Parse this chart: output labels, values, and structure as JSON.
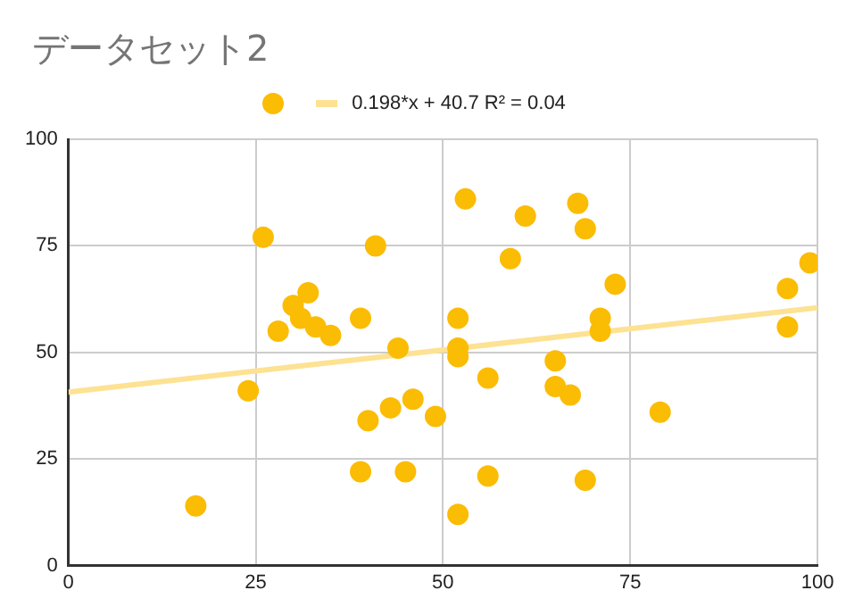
{
  "chart_data": {
    "type": "scatter",
    "title": "データセット2",
    "xlim": [
      0,
      100
    ],
    "ylim": [
      0,
      100
    ],
    "xticks": [
      0,
      25,
      50,
      75,
      100
    ],
    "yticks": [
      0,
      25,
      50,
      75,
      100
    ],
    "grid": true,
    "legend": "top",
    "series": [
      {
        "type": "scatter",
        "color": "#fbbc04",
        "marker": "circle",
        "x": [
          17,
          24,
          26,
          28,
          30,
          31,
          32,
          33,
          35,
          39,
          39,
          40,
          41,
          43,
          44,
          45,
          46,
          49,
          52,
          52,
          52,
          52,
          53,
          56,
          56,
          59,
          61,
          65,
          65,
          67,
          68,
          69,
          69,
          71,
          71,
          73,
          79,
          96,
          96,
          99
        ],
        "values": [
          14,
          41,
          77,
          55,
          61,
          58,
          64,
          56,
          54,
          58,
          22,
          34,
          75,
          37,
          51,
          22,
          39,
          35,
          58,
          51,
          49,
          12,
          86,
          44,
          21,
          72,
          82,
          48,
          42,
          40,
          85,
          79,
          20,
          58,
          55,
          66,
          36,
          65,
          56,
          71
        ]
      },
      {
        "type": "line",
        "name": "0.198*x + 40.7 R² = 0.04",
        "color": "#fde293",
        "marker": "none",
        "x": [
          0,
          100
        ],
        "values": [
          40.7,
          60.5
        ]
      }
    ]
  }
}
